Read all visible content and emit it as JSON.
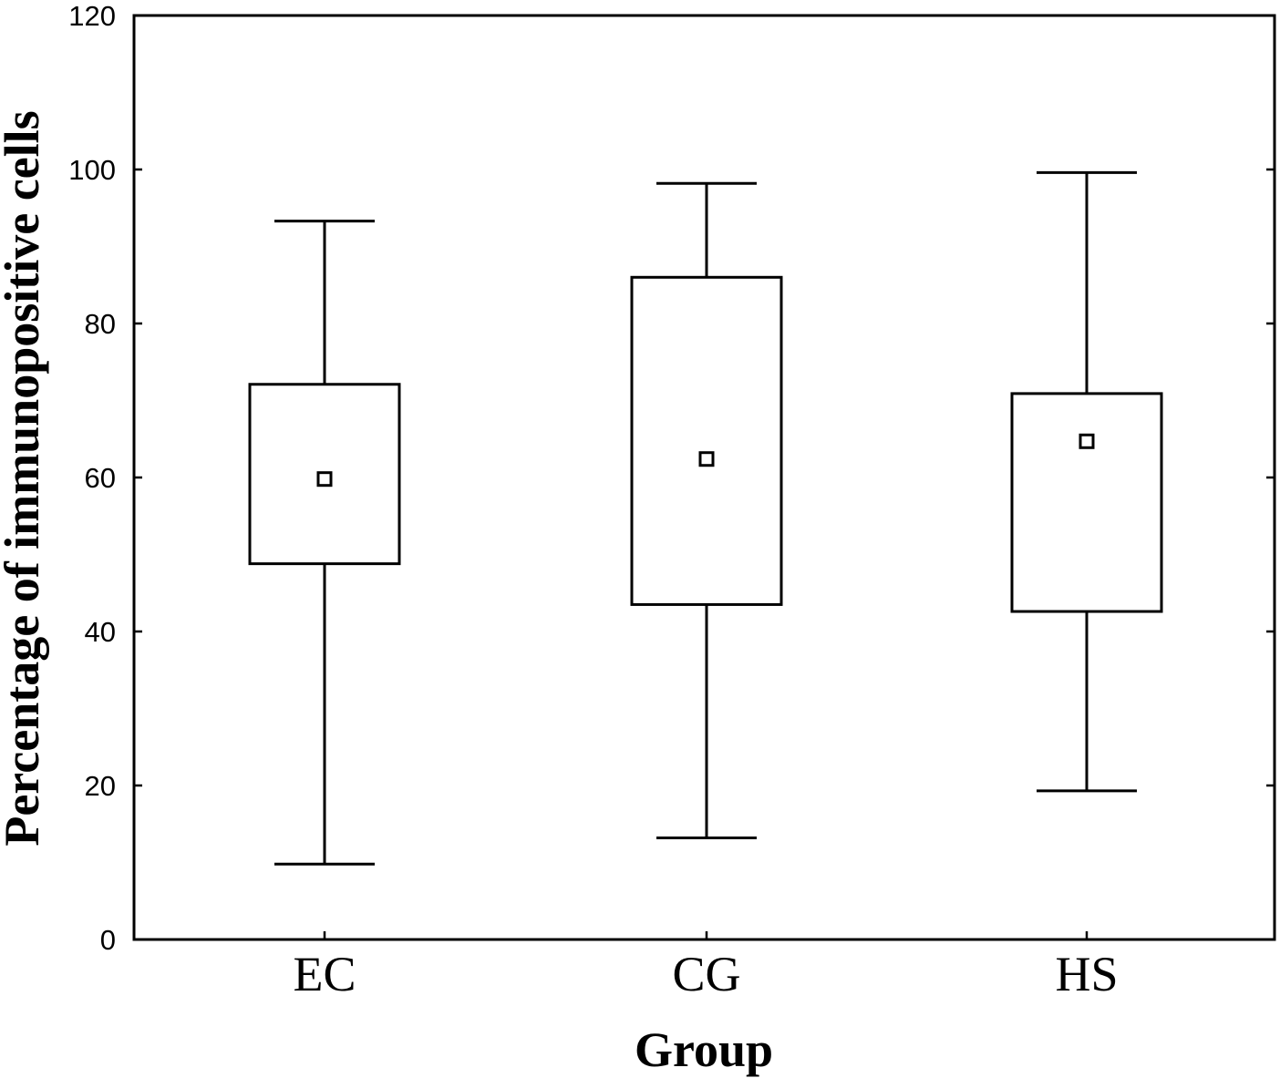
{
  "chart_data": {
    "type": "box",
    "xlabel": "Group",
    "ylabel": "Percentage of immunopositive cells",
    "ylim": [
      0,
      120
    ],
    "yticks": [
      "0",
      "20",
      "40",
      "60",
      "80",
      "100",
      "120"
    ],
    "categories": [
      "EC",
      "CG",
      "HS"
    ],
    "boxes": [
      {
        "category": "EC",
        "whisker_low": 9.8,
        "box_low": 48.8,
        "center": 59.8,
        "box_high": 72.1,
        "whisker_high": 93.3
      },
      {
        "category": "CG",
        "whisker_low": 13.2,
        "box_low": 43.5,
        "center": 62.4,
        "box_high": 86.0,
        "whisker_high": 98.2
      },
      {
        "category": "HS",
        "whisker_low": 19.3,
        "box_low": 42.6,
        "center": 64.7,
        "box_high": 70.9,
        "whisker_high": 99.6
      }
    ],
    "center_marker": "open-square",
    "grid": false,
    "legend": "none"
  }
}
